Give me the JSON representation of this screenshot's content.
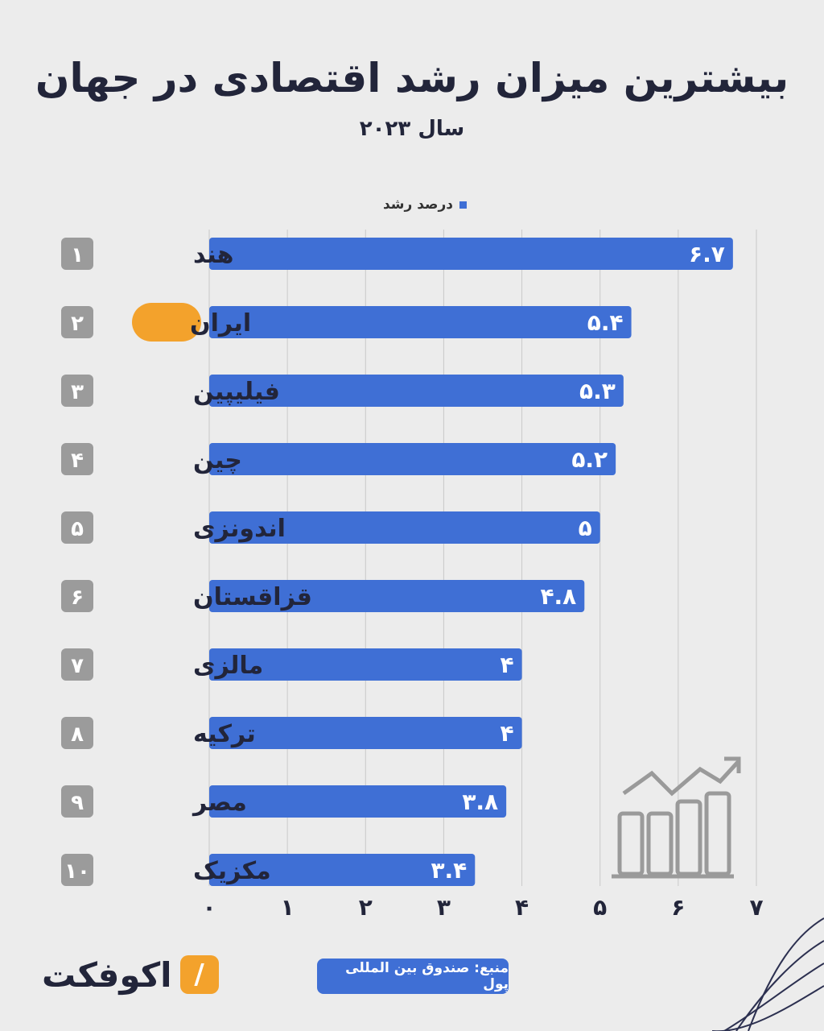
{
  "title": "بیشترین میزان رشد اقتصادی در جهان",
  "subtitle": "سال ۲۰۲۳",
  "legend_label": "درصد رشد",
  "source": "منبع: صندوق بین المللی پول",
  "logo_text": "اکوفکت",
  "colors": {
    "bar": "#3f6fd5",
    "badge": "#9b9b9b",
    "highlight": "#f3a22c",
    "text": "#22253a"
  },
  "chart_data": {
    "type": "bar",
    "orientation": "horizontal",
    "title": "بیشترین میزان رشد اقتصادی در جهان",
    "subtitle": "سال ۲۰۲۳",
    "categories": [
      "هند",
      "ایران",
      "فیلیپین",
      "چین",
      "اندونزی",
      "قزاقستان",
      "مالزی",
      "ترکیه",
      "مصر",
      "مکزیک"
    ],
    "ranks": [
      "۱",
      "۲",
      "۳",
      "۴",
      "۵",
      "۶",
      "۷",
      "۸",
      "۹",
      "۱۰"
    ],
    "series": [
      {
        "name": "درصد رشد",
        "values": [
          6.7,
          5.4,
          5.3,
          5.2,
          5,
          4.8,
          4,
          4,
          3.8,
          3.4
        ],
        "labels": [
          "۶.۷",
          "۵.۴",
          "۵.۳",
          "۵.۲",
          "۵",
          "۴.۸",
          "۴",
          "۴",
          "۳.۸",
          "۳.۴"
        ]
      }
    ],
    "highlight_category": "ایران",
    "xlim": [
      0,
      7
    ],
    "x_ticks": [
      0,
      1,
      2,
      3,
      4,
      5,
      6,
      7
    ],
    "x_tick_labels": [
      "۰",
      "۱",
      "۲",
      "۳",
      "۴",
      "۵",
      "۶",
      "۷"
    ],
    "grid": true,
    "legend_position": "top"
  }
}
